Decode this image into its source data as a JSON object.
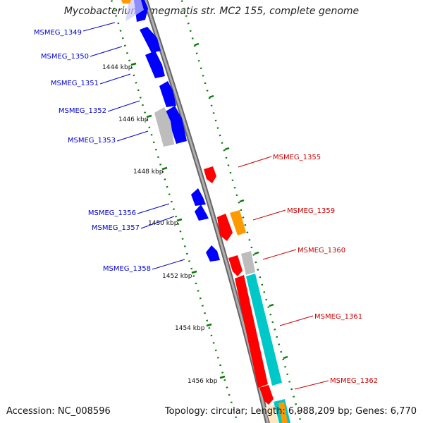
{
  "title": "Mycobacterium smegmatis str. MC2 155, complete genome",
  "accession_text": "Accession: NC_008596",
  "summary_text": "Topology: circular; Length: 6,988,209 bp; Genes: 6,770",
  "colors": {
    "forward_gene": "#ff0000",
    "reverse_gene": "#0000ff",
    "cds_highlight": "#00c8c8",
    "other_feature": "#ff9900",
    "pseudo_gray": "#bdbdbd",
    "backbone": "#888888",
    "tick": "#0a7a0a"
  },
  "scale_labels": [
    "1444 kbp",
    "1446 kbp",
    "1448 kbp",
    "1450 kbp",
    "1452 kbp",
    "1454 kbp",
    "1456 kbp"
  ],
  "left_labels": [
    "MSMEG_1349",
    "MSMEG_1350",
    "MSMEG_1351",
    "MSMEG_1352",
    "MSMEG_1353",
    "MSMEG_1356",
    "MSMEG_1357",
    "MSMEG_1358"
  ],
  "right_labels": [
    "MSMEG_1355",
    "MSMEG_1359",
    "MSMEG_1360",
    "MSMEG_1361",
    "MSMEG_1362"
  ]
}
